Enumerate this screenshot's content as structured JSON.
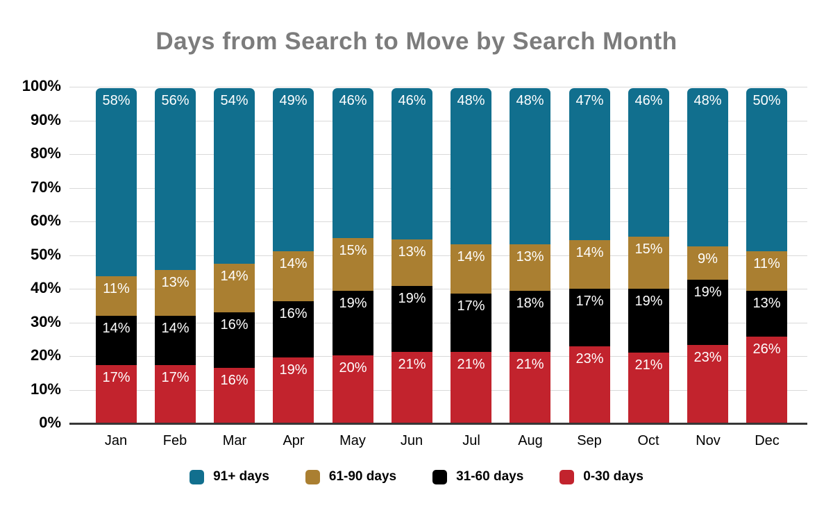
{
  "title": "Days from Search to Move by Search Month",
  "colors": {
    "title_text": "#7c7c7c",
    "gridline": "#d9d9d9",
    "axis_line": "#373737",
    "segment_label_text": "#ffffff",
    "series_91_plus": "#116f8e",
    "series_61_90": "#aa7f31",
    "series_31_60": "#000000",
    "series_0_30": "#c2232d"
  },
  "chart_data": {
    "type": "bar",
    "stacked": true,
    "title": "Days from Search to Move by Search Month",
    "xlabel": "",
    "ylabel": "",
    "ylim": [
      0,
      100
    ],
    "grid": true,
    "legend_position": "bottom",
    "categories": [
      "Jan",
      "Feb",
      "Mar",
      "Apr",
      "May",
      "Jun",
      "Jul",
      "Aug",
      "Sep",
      "Oct",
      "Nov",
      "Dec"
    ],
    "y_ticks": [
      "0%",
      "10%",
      "20%",
      "30%",
      "40%",
      "50%",
      "60%",
      "70%",
      "80%",
      "90%",
      "100%"
    ],
    "series": [
      {
        "name": "0-30 days",
        "color": "#c2232d",
        "stack_order": 1,
        "values": [
          17,
          17,
          16,
          19,
          20,
          21,
          21,
          21,
          23,
          21,
          23,
          26
        ],
        "labels": [
          "17%",
          "17%",
          "16%",
          "19%",
          "20%",
          "21%",
          "21%",
          "21%",
          "23%",
          "21%",
          "23%",
          "26%"
        ]
      },
      {
        "name": "31-60 days",
        "color": "#000000",
        "stack_order": 2,
        "values": [
          14,
          14,
          16,
          16,
          19,
          19,
          17,
          18,
          17,
          19,
          19,
          13
        ],
        "labels": [
          "14%",
          "14%",
          "16%",
          "16%",
          "19%",
          "19%",
          "17%",
          "18%",
          "17%",
          "19%",
          "19%",
          "13%"
        ]
      },
      {
        "name": "61-90 days",
        "color": "#aa7f31",
        "stack_order": 3,
        "values": [
          11,
          13,
          14,
          14,
          15,
          13,
          14,
          13,
          14,
          15,
          9,
          11
        ],
        "labels": [
          "11%",
          "13%",
          "14%",
          "14%",
          "15%",
          "13%",
          "14%",
          "13%",
          "14%",
          "15%",
          "9%",
          "11%"
        ]
      },
      {
        "name": "91+ days",
        "color": "#116f8e",
        "stack_order": 4,
        "values": [
          58,
          56,
          54,
          49,
          46,
          46,
          48,
          48,
          47,
          46,
          48,
          50
        ],
        "labels": [
          "58%",
          "56%",
          "54%",
          "49%",
          "46%",
          "46%",
          "48%",
          "48%",
          "47%",
          "46%",
          "48%",
          "50%"
        ]
      }
    ],
    "legend": [
      {
        "label": "91+ days",
        "color": "#116f8e"
      },
      {
        "label": "61-90 days",
        "color": "#aa7f31"
      },
      {
        "label": "31-60 days",
        "color": "#000000"
      },
      {
        "label": "0-30 days",
        "color": "#c2232d"
      }
    ]
  }
}
